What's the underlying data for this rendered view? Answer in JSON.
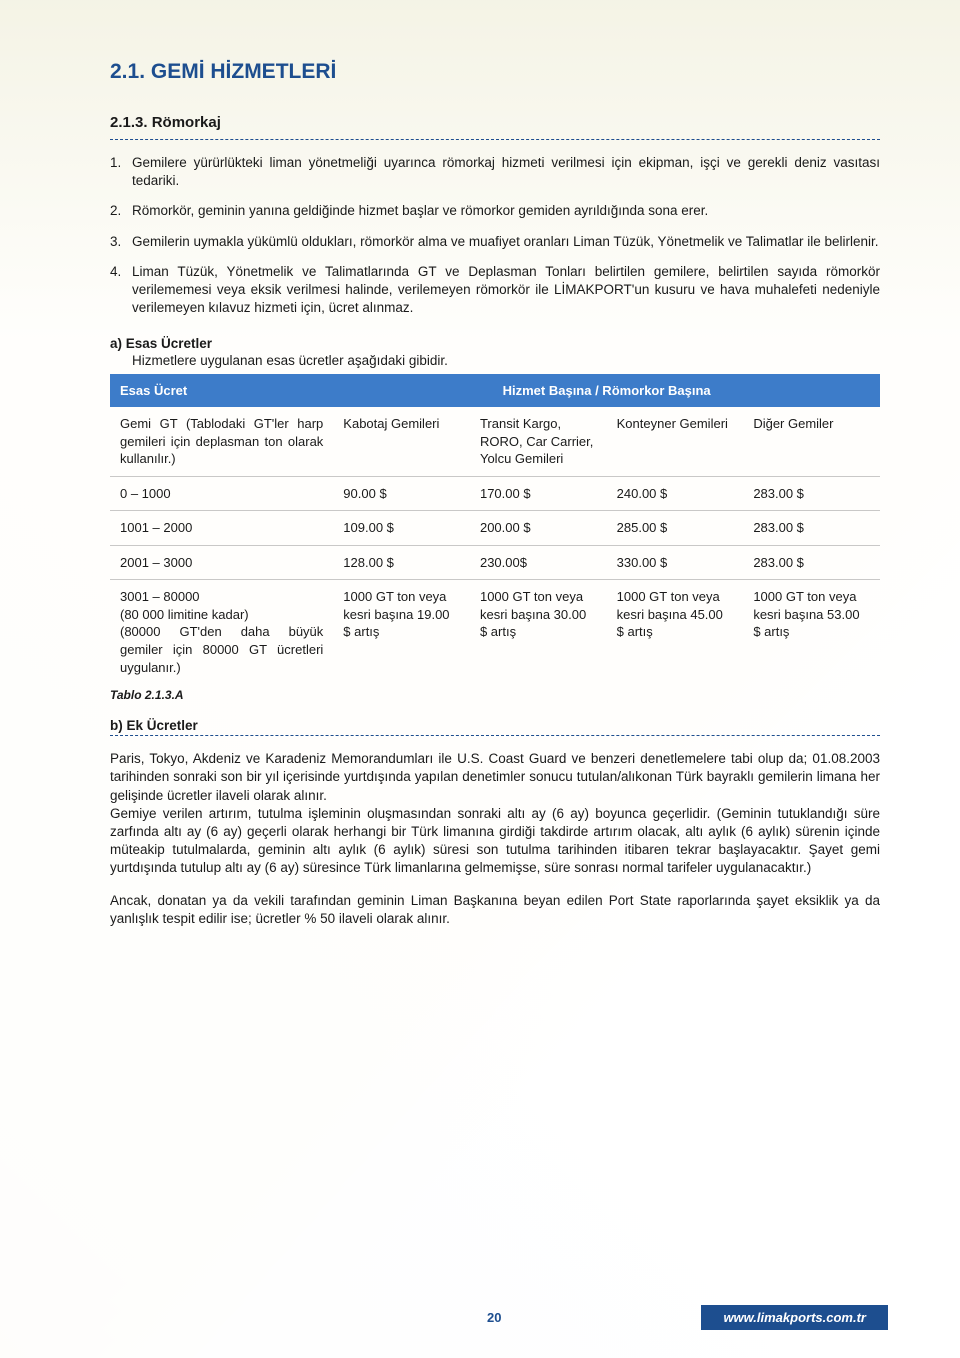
{
  "heading": "2.1. GEMİ HİZMETLERİ",
  "section_title": "2.1.3.   Römorkaj",
  "numbered_items": [
    "Gemilere yürürlükteki liman yönetmeliği uyarınca römorkaj hizmeti verilmesi için ekipman, işçi ve gerekli deniz vasıtası tedariki.",
    "Römorkör, geminin yanına geldiğinde hizmet başlar ve römorkor gemiden ayrıldığında sona erer.",
    "Gemilerin uymakla yükümlü oldukları, römorkör alma ve muafiyet oranları Liman Tüzük, Yönetmelik ve Talimatlar ile belirlenir.",
    "Liman Tüzük, Yönetmelik ve Talimatlarında GT ve Deplasman Tonları belirtilen gemilere, belirtilen sayıda römorkör verilememesi veya eksik verilmesi halinde, verilemeyen römorkör ile LİMAKPORT'un kusuru ve hava muhalefeti nedeniyle verilemeyen kılavuz hizmeti için, ücret alınmaz."
  ],
  "a_label": "a)   Esas Ücretler",
  "a_desc": "Hizmetlere uygulanan esas ücretler aşağıdaki gibidir.",
  "table": {
    "header_left": "Esas Ücret",
    "header_right": "Hizmet Başına / Römorkor Başına",
    "desc_header": "Gemi GT\n(Tablodaki GT'ler harp gemileri için deplasman ton olarak kullanılır.)",
    "col_headers": [
      "Kabotaj Gemileri",
      "Transit Kargo, RORO, Car Carrier, Yolcu Gemileri",
      "Konteyner Gemileri",
      "Diğer Gemiler"
    ],
    "rows": [
      {
        "label": "0 – 1000",
        "v": [
          "90.00 $",
          "170.00 $",
          "240.00 $",
          "283.00 $"
        ]
      },
      {
        "label": "1001 – 2000",
        "v": [
          "109.00 $",
          "200.00 $",
          "285.00 $",
          "283.00 $"
        ]
      },
      {
        "label": "2001 – 3000",
        "v": [
          "128.00 $",
          "230.00$",
          "330.00 $",
          "283.00 $"
        ]
      },
      {
        "label": "3001 – 80000\n(80 000 limitine kadar)\n(80000 GT'den daha büyük gemiler için 80000 GT ücretleri uygulanır.)",
        "v": [
          "1000 GT ton veya kesri başına 19.00 $ artış",
          "1000 GT ton veya kesri başına 30.00 $ artış",
          "1000 GT ton veya kesri başına 45.00 $ artış",
          "1000 GT ton veya kesri başına 53.00 $ artış"
        ]
      }
    ],
    "caption": "Tablo 2.1.3.A"
  },
  "b_label": "b)   Ek Ücretler",
  "para_b1": "Paris, Tokyo, Akdeniz ve Karadeniz Memorandumları ile U.S. Coast Guard ve benzeri denetlemelere tabi olup da; 01.08.2003 tarihinden sonraki son bir yıl içerisinde yurtdışında yapılan denetimler sonucu tutulan/alıkonan Türk bayraklı gemilerin limana her gelişinde ücretler ilaveli olarak alınır.\nGemiye verilen artırım, tutulma işleminin oluşmasından sonraki altı ay (6 ay) boyunca geçerlidir. (Geminin tutuklandığı süre zarfında altı ay (6 ay) geçerli olarak herhangi bir Türk limanına girdiği takdirde artırım olacak, altı aylık (6 aylık) sürenin içinde müteakip tutulmalarda, geminin altı aylık (6 aylık) süresi son tutulma tarihinden itibaren tekrar başlayacaktır. Şayet gemi yurtdışında tutulup altı ay (6 ay) süresince Türk limanlarına gelmemişse, süre sonrası normal tarifeler uygulanacaktır.)",
  "para_b2": "Ancak, donatan ya da vekili tarafından geminin Liman Başkanına beyan edilen Port State raporlarında şayet eksiklik ya da yanlışlık tespit edilir ise; ücretler % 50 ilaveli olarak alınır.",
  "page_number": "20",
  "footer_url": "www.limakports.com.tr",
  "colors": {
    "accent": "#1d4e8f",
    "table_header_bg": "#3d7cc9"
  }
}
